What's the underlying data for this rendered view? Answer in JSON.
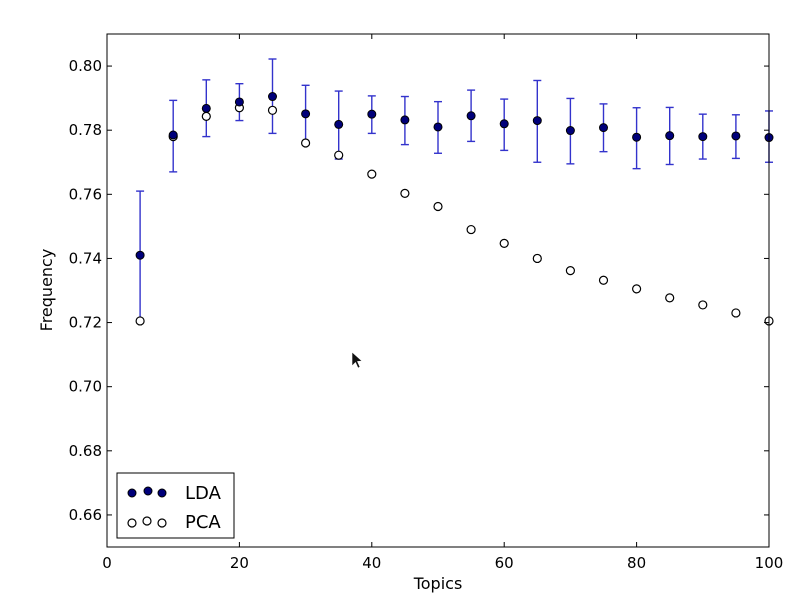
{
  "chart_data": {
    "type": "scatter",
    "title": "",
    "xlabel": "Topics",
    "ylabel": "Frequency",
    "xlim": [
      0,
      100
    ],
    "ylim": [
      0.65,
      0.81
    ],
    "xticks": [
      0,
      20,
      40,
      60,
      80,
      100
    ],
    "xtick_labels": [
      "0",
      "20",
      "40",
      "60",
      "80",
      "100"
    ],
    "yticks": [
      0.66,
      0.68,
      0.7,
      0.72,
      0.74,
      0.76,
      0.78,
      0.8
    ],
    "ytick_labels": [
      "0.66",
      "0.68",
      "0.70",
      "0.72",
      "0.74",
      "0.76",
      "0.78",
      "0.80"
    ],
    "grid": false,
    "legend_position": "lower-left",
    "x": [
      5,
      10,
      15,
      20,
      25,
      30,
      35,
      40,
      45,
      50,
      55,
      60,
      65,
      70,
      75,
      80,
      85,
      90,
      95,
      100
    ],
    "series": [
      {
        "name": "LDA",
        "marker": "filled-circle",
        "color": "#00007a",
        "errorbar_color": "#3333cc",
        "values": [
          0.741,
          0.7785,
          0.7868,
          0.7888,
          0.7905,
          0.7851,
          0.7818,
          0.785,
          0.7832,
          0.781,
          0.7845,
          0.782,
          0.783,
          0.7799,
          0.7808,
          0.7778,
          0.7783,
          0.778,
          0.7782,
          0.7777
        ],
        "err_low": [
          0.7205,
          0.767,
          0.778,
          0.783,
          0.779,
          0.7761,
          0.771,
          0.779,
          0.7755,
          0.7728,
          0.7765,
          0.7737,
          0.77,
          0.7695,
          0.7733,
          0.768,
          0.7693,
          0.771,
          0.7712,
          0.77
        ],
        "err_high": [
          0.761,
          0.7893,
          0.7957,
          0.7945,
          0.8022,
          0.794,
          0.7922,
          0.7907,
          0.7905,
          0.7889,
          0.7925,
          0.7897,
          0.7955,
          0.7899,
          0.7882,
          0.787,
          0.7871,
          0.785,
          0.7848,
          0.786
        ]
      },
      {
        "name": "PCA",
        "marker": "open-circle",
        "color": "#000000",
        "values": [
          0.7205,
          0.778,
          0.7843,
          0.787,
          0.7862,
          0.776,
          0.7722,
          0.7663,
          0.7603,
          0.7562,
          0.749,
          0.7447,
          0.74,
          0.7362,
          0.7332,
          0.7305,
          0.7277,
          0.7255,
          0.723,
          0.7205
        ]
      }
    ]
  }
}
